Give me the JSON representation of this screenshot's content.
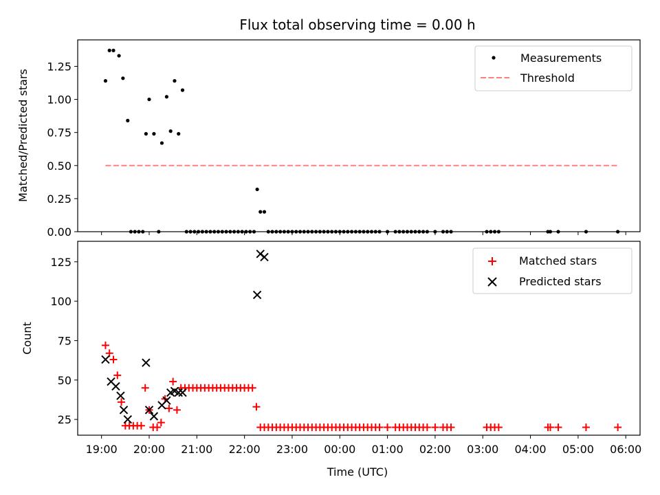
{
  "colors": {
    "measurements": "#000000",
    "threshold": "#ff7f7f",
    "matched": "#ff0000",
    "predicted": "#000000"
  },
  "chart_data": [
    {
      "type": "scatter",
      "title": "Flux total observing time = 0.00 h",
      "xlabel": "",
      "ylabel": "Matched/Predicted stars",
      "xlim": [
        "18:30",
        "06:18"
      ],
      "ylim": [
        0,
        1.45
      ],
      "y_ticks": [
        0.0,
        0.25,
        0.5,
        0.75,
        1.0,
        1.25
      ],
      "y_tick_labels": [
        "0.00",
        "0.25",
        "0.50",
        "0.75",
        "1.00",
        "1.25"
      ],
      "legend": {
        "placement": "top-right",
        "entries": [
          {
            "label": "Measurements",
            "marker": "dot",
            "color": "#000000"
          },
          {
            "label": "Threshold",
            "marker": "dashed-line",
            "color": "#ff7f7f"
          }
        ]
      },
      "series": [
        {
          "name": "Measurements",
          "marker": "dot",
          "color": "#000000",
          "points": [
            [
              "19:05",
              1.14
            ],
            [
              "19:10",
              1.37
            ],
            [
              "19:15",
              1.37
            ],
            [
              "19:22",
              1.33
            ],
            [
              "19:27",
              1.16
            ],
            [
              "19:33",
              0.84
            ],
            [
              "19:37",
              0.0
            ],
            [
              "19:42",
              0.0
            ],
            [
              "19:47",
              0.0
            ],
            [
              "19:52",
              0.0
            ],
            [
              "19:56",
              0.74
            ],
            [
              "20:00",
              1.0
            ],
            [
              "20:06",
              0.74
            ],
            [
              "20:12",
              0.0
            ],
            [
              "20:16",
              0.67
            ],
            [
              "20:22",
              1.02
            ],
            [
              "20:27",
              0.76
            ],
            [
              "20:32",
              1.14
            ],
            [
              "20:37",
              0.74
            ],
            [
              "20:42",
              1.07
            ],
            [
              "20:47",
              0.0
            ],
            [
              "20:52",
              0.0
            ],
            [
              "20:57",
              0.0
            ],
            [
              "21:02",
              0.0
            ],
            [
              "21:07",
              0.0
            ],
            [
              "21:12",
              0.0
            ],
            [
              "21:17",
              0.0
            ],
            [
              "21:22",
              0.0
            ],
            [
              "21:27",
              0.0
            ],
            [
              "21:32",
              0.0
            ],
            [
              "21:37",
              0.0
            ],
            [
              "21:42",
              0.0
            ],
            [
              "21:47",
              0.0
            ],
            [
              "21:52",
              0.0
            ],
            [
              "21:57",
              0.0
            ],
            [
              "22:02",
              0.0
            ],
            [
              "22:07",
              0.0
            ],
            [
              "22:12",
              0.0
            ],
            [
              "22:16",
              0.32
            ],
            [
              "22:20",
              0.15
            ],
            [
              "22:25",
              0.15
            ],
            [
              "22:30",
              0.0
            ],
            [
              "22:35",
              0.0
            ],
            [
              "22:40",
              0.0
            ],
            [
              "22:45",
              0.0
            ],
            [
              "22:50",
              0.0
            ],
            [
              "22:55",
              0.0
            ],
            [
              "23:00",
              0.0
            ],
            [
              "23:05",
              0.0
            ],
            [
              "23:10",
              0.0
            ],
            [
              "23:15",
              0.0
            ],
            [
              "23:20",
              0.0
            ],
            [
              "23:25",
              0.0
            ],
            [
              "23:30",
              0.0
            ],
            [
              "23:35",
              0.0
            ],
            [
              "23:40",
              0.0
            ],
            [
              "23:45",
              0.0
            ],
            [
              "23:50",
              0.0
            ],
            [
              "23:55",
              0.0
            ],
            [
              "00:00",
              0.0
            ],
            [
              "00:05",
              0.0
            ],
            [
              "00:10",
              0.0
            ],
            [
              "00:15",
              0.0
            ],
            [
              "00:20",
              0.0
            ],
            [
              "00:25",
              0.0
            ],
            [
              "00:30",
              0.0
            ],
            [
              "00:35",
              0.0
            ],
            [
              "00:40",
              0.0
            ],
            [
              "00:45",
              0.0
            ],
            [
              "00:50",
              0.0
            ],
            [
              "01:00",
              0.0
            ],
            [
              "01:10",
              0.0
            ],
            [
              "01:15",
              0.0
            ],
            [
              "01:20",
              0.0
            ],
            [
              "01:25",
              0.0
            ],
            [
              "01:30",
              0.0
            ],
            [
              "01:35",
              0.0
            ],
            [
              "01:40",
              0.0
            ],
            [
              "01:45",
              0.0
            ],
            [
              "01:50",
              0.0
            ],
            [
              "02:00",
              0.0
            ],
            [
              "02:10",
              0.0
            ],
            [
              "02:15",
              0.0
            ],
            [
              "02:20",
              0.0
            ],
            [
              "03:05",
              0.0
            ],
            [
              "03:10",
              0.0
            ],
            [
              "03:15",
              0.0
            ],
            [
              "03:20",
              0.0
            ],
            [
              "04:22",
              0.0
            ],
            [
              "04:25",
              0.0
            ],
            [
              "04:35",
              0.0
            ],
            [
              "05:10",
              0.0
            ],
            [
              "05:50",
              0.0
            ]
          ]
        },
        {
          "name": "Threshold",
          "marker": "dashed-line",
          "color": "#ff7f7f",
          "points": [
            [
              "19:05",
              0.5
            ],
            [
              "05:50",
              0.5
            ]
          ]
        }
      ]
    },
    {
      "type": "scatter",
      "title": "",
      "xlabel": "Time (UTC)",
      "ylabel": "Count",
      "xlim": [
        "18:30",
        "06:18"
      ],
      "ylim": [
        15,
        138
      ],
      "y_ticks": [
        25,
        50,
        75,
        100,
        125
      ],
      "y_tick_labels": [
        "25",
        "50",
        "75",
        "100",
        "125"
      ],
      "x_ticks": [
        "19:00",
        "20:00",
        "21:00",
        "22:00",
        "23:00",
        "00:00",
        "01:00",
        "02:00",
        "03:00",
        "04:00",
        "05:00",
        "06:00"
      ],
      "x_tick_labels": [
        "19:00",
        "20:00",
        "21:00",
        "22:00",
        "23:00",
        "00:00",
        "01:00",
        "02:00",
        "03:00",
        "04:00",
        "05:00",
        "06:00"
      ],
      "legend": {
        "placement": "top-right",
        "entries": [
          {
            "label": "Matched stars",
            "marker": "plus",
            "color": "#ff0000"
          },
          {
            "label": "Predicted stars",
            "marker": "x",
            "color": "#000000"
          }
        ]
      },
      "series": [
        {
          "name": "Matched stars",
          "marker": "plus",
          "color": "#ff0000",
          "points": [
            [
              "19:05",
              72
            ],
            [
              "19:10",
              67
            ],
            [
              "19:15",
              63
            ],
            [
              "19:20",
              53
            ],
            [
              "19:25",
              36
            ],
            [
              "19:30",
              21
            ],
            [
              "19:35",
              21
            ],
            [
              "19:40",
              21
            ],
            [
              "19:45",
              21
            ],
            [
              "19:50",
              21
            ],
            [
              "19:55",
              45
            ],
            [
              "20:00",
              31
            ],
            [
              "20:05",
              20
            ],
            [
              "20:10",
              20
            ],
            [
              "20:15",
              23
            ],
            [
              "20:20",
              38
            ],
            [
              "20:25",
              32
            ],
            [
              "20:30",
              49
            ],
            [
              "20:35",
              31
            ],
            [
              "20:40",
              45
            ],
            [
              "20:45",
              45
            ],
            [
              "20:50",
              45
            ],
            [
              "20:55",
              45
            ],
            [
              "21:00",
              45
            ],
            [
              "21:05",
              45
            ],
            [
              "21:10",
              45
            ],
            [
              "21:15",
              45
            ],
            [
              "21:20",
              45
            ],
            [
              "21:25",
              45
            ],
            [
              "21:30",
              45
            ],
            [
              "21:35",
              45
            ],
            [
              "21:40",
              45
            ],
            [
              "21:45",
              45
            ],
            [
              "21:50",
              45
            ],
            [
              "21:55",
              45
            ],
            [
              "22:00",
              45
            ],
            [
              "22:05",
              45
            ],
            [
              "22:10",
              45
            ],
            [
              "22:15",
              33
            ],
            [
              "22:20",
              20
            ],
            [
              "22:25",
              20
            ],
            [
              "22:30",
              20
            ],
            [
              "22:35",
              20
            ],
            [
              "22:40",
              20
            ],
            [
              "22:45",
              20
            ],
            [
              "22:50",
              20
            ],
            [
              "22:55",
              20
            ],
            [
              "23:00",
              20
            ],
            [
              "23:05",
              20
            ],
            [
              "23:10",
              20
            ],
            [
              "23:15",
              20
            ],
            [
              "23:20",
              20
            ],
            [
              "23:25",
              20
            ],
            [
              "23:30",
              20
            ],
            [
              "23:35",
              20
            ],
            [
              "23:40",
              20
            ],
            [
              "23:45",
              20
            ],
            [
              "23:50",
              20
            ],
            [
              "23:55",
              20
            ],
            [
              "00:00",
              20
            ],
            [
              "00:05",
              20
            ],
            [
              "00:10",
              20
            ],
            [
              "00:15",
              20
            ],
            [
              "00:20",
              20
            ],
            [
              "00:25",
              20
            ],
            [
              "00:30",
              20
            ],
            [
              "00:35",
              20
            ],
            [
              "00:40",
              20
            ],
            [
              "00:45",
              20
            ],
            [
              "00:50",
              20
            ],
            [
              "01:00",
              20
            ],
            [
              "01:10",
              20
            ],
            [
              "01:15",
              20
            ],
            [
              "01:20",
              20
            ],
            [
              "01:25",
              20
            ],
            [
              "01:30",
              20
            ],
            [
              "01:35",
              20
            ],
            [
              "01:40",
              20
            ],
            [
              "01:45",
              20
            ],
            [
              "01:50",
              20
            ],
            [
              "02:00",
              20
            ],
            [
              "02:10",
              20
            ],
            [
              "02:15",
              20
            ],
            [
              "02:20",
              20
            ],
            [
              "03:05",
              20
            ],
            [
              "03:10",
              20
            ],
            [
              "03:15",
              20
            ],
            [
              "03:20",
              20
            ],
            [
              "04:22",
              20
            ],
            [
              "04:25",
              20
            ],
            [
              "04:35",
              20
            ],
            [
              "05:10",
              20
            ],
            [
              "05:50",
              20
            ]
          ]
        },
        {
          "name": "Predicted stars",
          "marker": "x",
          "color": "#000000",
          "points": [
            [
              "19:05",
              63
            ],
            [
              "19:12",
              49
            ],
            [
              "19:18",
              46
            ],
            [
              "19:24",
              40
            ],
            [
              "19:28",
              31
            ],
            [
              "19:33",
              25
            ],
            [
              "19:56",
              61
            ],
            [
              "20:00",
              31
            ],
            [
              "20:06",
              27
            ],
            [
              "20:16",
              34
            ],
            [
              "20:22",
              37
            ],
            [
              "20:27",
              42
            ],
            [
              "20:32",
              43
            ],
            [
              "20:37",
              42
            ],
            [
              "20:42",
              42
            ],
            [
              "22:16",
              104
            ],
            [
              "22:20",
              130
            ],
            [
              "22:25",
              128
            ]
          ]
        }
      ]
    }
  ]
}
